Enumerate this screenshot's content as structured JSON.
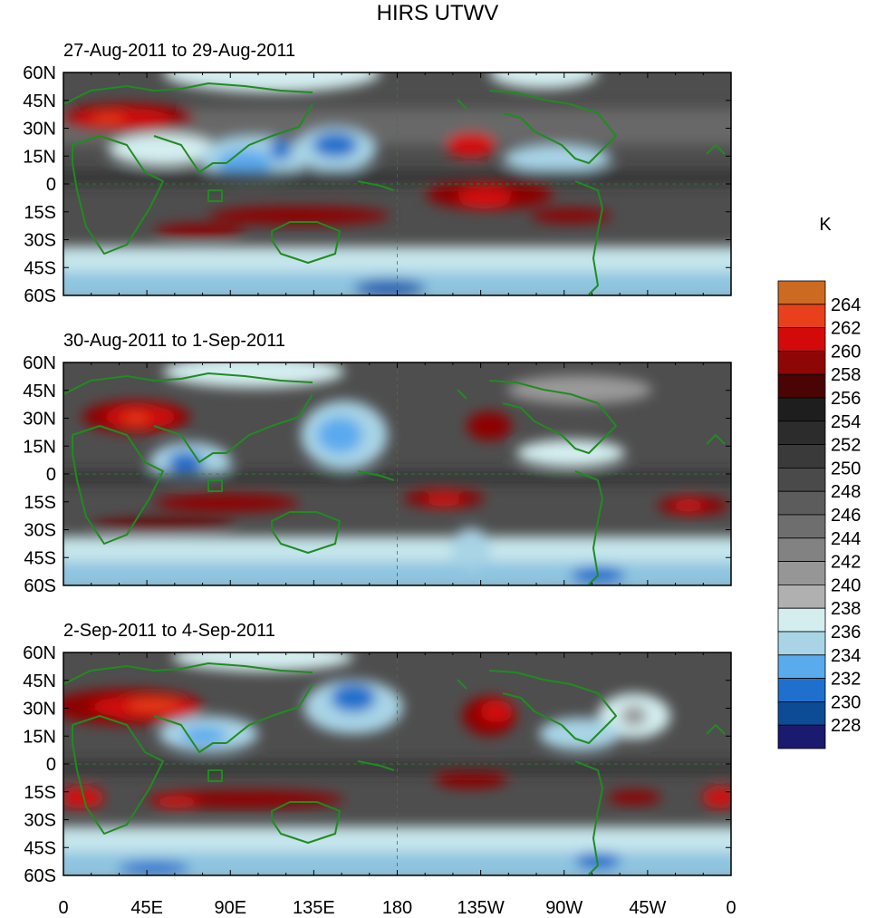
{
  "title": "HIRS UTWV",
  "panels": [
    {
      "label": "27-Aug-2011 to 29-Aug-2011"
    },
    {
      "label": "30-Aug-2011 to 1-Sep-2011"
    },
    {
      "label": "2-Sep-2011 to 4-Sep-2011"
    }
  ],
  "lat_labels": [
    "60N",
    "45N",
    "30N",
    "15N",
    "0",
    "15S",
    "30S",
    "45S",
    "60S"
  ],
  "lon_labels": [
    "0",
    "45E",
    "90E",
    "135E",
    "180",
    "135W",
    "90W",
    "45W",
    "0"
  ],
  "colorbar": {
    "unit": "K",
    "levels": [
      "264",
      "262",
      "260",
      "258",
      "256",
      "254",
      "252",
      "250",
      "248",
      "246",
      "244",
      "242",
      "240",
      "238",
      "236",
      "234",
      "232",
      "230",
      "228"
    ],
    "colors": [
      "#cc6a22",
      "#e8401c",
      "#d40a0a",
      "#8e0606",
      "#4a0404",
      "#1e1e1e",
      "#2c2c2c",
      "#3a3a3a",
      "#4a4a4a",
      "#5c5c5c",
      "#6e6e6e",
      "#828282",
      "#969696",
      "#b0b0b0",
      "#d4eef0",
      "#a8d4e6",
      "#5aaaee",
      "#1f70cc",
      "#0c4c96",
      "#1a1a6e"
    ]
  },
  "colors": {
    "coastline": "#1f8c1f",
    "frame": "#000000"
  }
}
